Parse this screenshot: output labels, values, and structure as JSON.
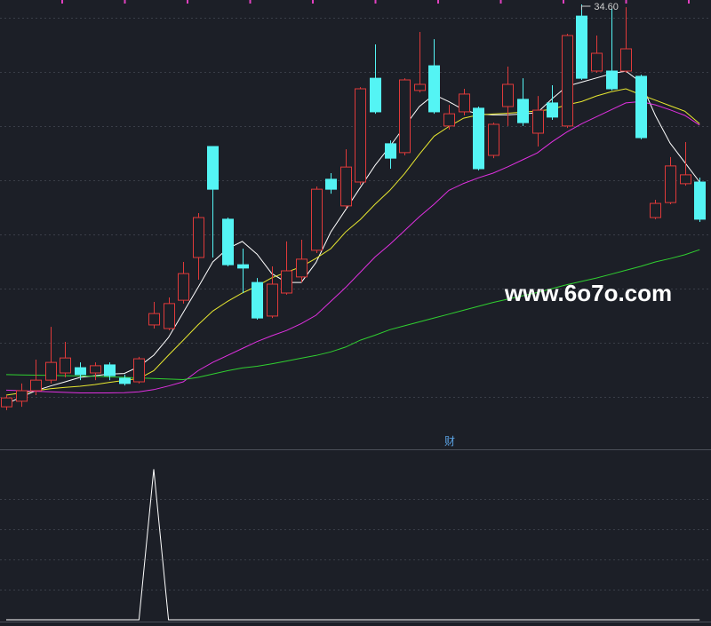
{
  "watermark": "www.6o7o.com",
  "chart_data": [
    {
      "type": "candlestick",
      "open": [
        20.1,
        20.3,
        20.68,
        21.06,
        21.32,
        21.51,
        21.32,
        21.61,
        21.13,
        21.0,
        23.05,
        22.92,
        23.94,
        25.48,
        29.48,
        26.86,
        25.22,
        24.58,
        23.37,
        24.2,
        24.78,
        25.74,
        28.3,
        27.34,
        28.2,
        31.94,
        29.58,
        29.26,
        31.5,
        32.39,
        30.22,
        30.73,
        30.86,
        29.16,
        30.92,
        31.18,
        29.96,
        31.05,
        30.22,
        34.18,
        32.2,
        32.2,
        32.2,
        32.01,
        26.92,
        27.46,
        28.14,
        28.2
      ],
      "high": [
        20.52,
        20.94,
        21.8,
        22.98,
        22.44,
        21.7,
        21.7,
        21.7,
        21.26,
        21.9,
        23.88,
        24.04,
        25.32,
        27.08,
        29.48,
        26.92,
        25.8,
        24.74,
        25.16,
        26.06,
        26.12,
        28.04,
        28.52,
        29.38,
        31.62,
        33.16,
        29.7,
        31.94,
        33.61,
        33.35,
        30.98,
        31.56,
        30.92,
        30.34,
        32.36,
        31.94,
        31.3,
        31.69,
        33.54,
        34.6,
        33.48,
        34.44,
        34.5,
        32.07,
        27.56,
        29.1,
        29.64,
        28.36
      ],
      "low": [
        19.98,
        20.1,
        20.52,
        20.94,
        21.16,
        21.06,
        21.06,
        21.06,
        20.87,
        20.94,
        22.92,
        22.86,
        23.82,
        24.68,
        25.48,
        25.16,
        24.2,
        23.24,
        23.3,
        24.14,
        24.58,
        25.64,
        27.78,
        27.24,
        28.1,
        30.66,
        28.68,
        29.16,
        31.43,
        30.66,
        30.09,
        30.6,
        28.62,
        29.06,
        30.22,
        30.22,
        29.48,
        30.44,
        30.15,
        31.88,
        32.14,
        31.5,
        32.14,
        29.74,
        26.86,
        27.4,
        28.07,
        26.76
      ],
      "close": [
        20.42,
        20.68,
        21.06,
        21.7,
        21.86,
        21.26,
        21.58,
        21.22,
        20.94,
        21.83,
        23.46,
        23.82,
        24.9,
        26.92,
        27.94,
        25.22,
        25.1,
        23.3,
        24.52,
        25.0,
        25.42,
        27.94,
        27.94,
        28.74,
        31.56,
        30.73,
        29.06,
        31.88,
        31.72,
        30.73,
        30.66,
        31.37,
        28.68,
        30.28,
        31.72,
        30.34,
        30.79,
        30.54,
        33.48,
        31.94,
        32.84,
        31.56,
        33.0,
        29.8,
        27.43,
        28.78,
        28.46,
        26.86
      ],
      "up_color": "#e03a3a",
      "down_color": "#54f4f4",
      "series": [
        {
          "color": "#ffffff",
          "values": [
            20.2,
            20.45,
            20.68,
            20.85,
            21.0,
            21.16,
            21.22,
            21.28,
            21.3,
            21.55,
            21.96,
            22.6,
            23.5,
            24.4,
            25.32,
            25.8,
            26.06,
            25.6,
            24.9,
            24.58,
            24.58,
            25.3,
            26.4,
            27.2,
            28.0,
            28.8,
            29.48,
            30.2,
            30.92,
            31.35,
            31.1,
            30.8,
            30.65,
            30.62,
            30.62,
            30.65,
            30.7,
            31.2,
            31.65,
            31.8,
            31.95,
            32.1,
            32.2,
            31.8,
            30.6,
            29.6,
            28.9,
            28.2
          ]
        },
        {
          "color": "#e8e830",
          "values": [
            20.52,
            20.6,
            20.68,
            20.75,
            20.8,
            20.84,
            20.9,
            20.98,
            21.05,
            21.12,
            21.4,
            21.96,
            22.5,
            23.05,
            23.55,
            23.9,
            24.2,
            24.45,
            24.75,
            24.95,
            25.15,
            25.45,
            25.8,
            26.4,
            26.85,
            27.4,
            27.9,
            28.5,
            29.2,
            29.85,
            30.2,
            30.5,
            30.62,
            30.65,
            30.68,
            30.72,
            30.76,
            30.82,
            30.98,
            31.1,
            31.3,
            31.45,
            31.56,
            31.35,
            31.15,
            30.95,
            30.75,
            30.3
          ]
        },
        {
          "color": "#e030e0",
          "values": [
            20.7,
            20.68,
            20.66,
            20.64,
            20.62,
            20.6,
            20.6,
            20.6,
            20.61,
            20.64,
            20.72,
            20.85,
            21.0,
            21.4,
            21.7,
            21.95,
            22.2,
            22.45,
            22.66,
            22.85,
            23.1,
            23.4,
            23.9,
            24.4,
            24.95,
            25.5,
            25.95,
            26.45,
            26.95,
            27.4,
            27.9,
            28.15,
            28.35,
            28.52,
            28.75,
            29.0,
            29.25,
            29.65,
            30.0,
            30.3,
            30.55,
            30.8,
            31.05,
            31.1,
            30.98,
            30.8,
            30.6,
            30.25
          ]
        },
        {
          "color": "#30d030",
          "values": [
            21.26,
            21.25,
            21.24,
            21.23,
            21.22,
            21.21,
            21.2,
            21.18,
            21.16,
            21.14,
            21.12,
            21.1,
            21.08,
            21.16,
            21.28,
            21.4,
            21.5,
            21.56,
            21.65,
            21.75,
            21.85,
            21.95,
            22.08,
            22.25,
            22.5,
            22.68,
            22.88,
            23.02,
            23.16,
            23.3,
            23.44,
            23.58,
            23.72,
            23.86,
            23.98,
            24.1,
            24.22,
            24.36,
            24.5,
            24.62,
            24.74,
            24.88,
            25.02,
            25.16,
            25.32,
            25.44,
            25.58,
            25.76
          ]
        }
      ],
      "high_label": "34.60",
      "ylim": [
        18.6,
        34.76
      ],
      "yticks": [
        20.46,
        22.41,
        24.36,
        26.31,
        28.26,
        30.22,
        32.17,
        34.12
      ],
      "grid": true
    },
    {
      "type": "line",
      "title": "财",
      "values": [
        0,
        0,
        0,
        0,
        0,
        0,
        0,
        0,
        0,
        0,
        1,
        0,
        0,
        0,
        0,
        0,
        0,
        0,
        0,
        0,
        0,
        0,
        0,
        0,
        0,
        0,
        0,
        0,
        0,
        0,
        0,
        0,
        0,
        0,
        0,
        0,
        0,
        0,
        0,
        0,
        0,
        0,
        0,
        0,
        0,
        0,
        0,
        0
      ],
      "color": "#ffffff",
      "ylim": [
        0,
        1.12
      ],
      "yticks": [
        0.2,
        0.4,
        0.6,
        0.8
      ],
      "grid": true
    }
  ]
}
